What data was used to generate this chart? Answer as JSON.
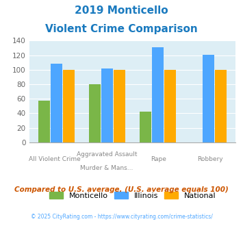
{
  "title_line1": "2019 Monticello",
  "title_line2": "Violent Crime Comparison",
  "title_color": "#1a7abf",
  "top_labels": [
    "",
    "Aggravated Assault",
    "",
    ""
  ],
  "bot_labels": [
    "All Violent Crime",
    "Murder & Mans...",
    "Rape",
    "Robbery"
  ],
  "monticello": [
    57,
    80,
    42,
    0
  ],
  "illinois": [
    108,
    102,
    131,
    121
  ],
  "national": [
    100,
    100,
    100,
    100
  ],
  "monticello_color": "#7ab648",
  "illinois_color": "#4da6ff",
  "national_color": "#ffaa00",
  "ylim": [
    0,
    140
  ],
  "yticks": [
    0,
    20,
    40,
    60,
    80,
    100,
    120,
    140
  ],
  "plot_bg": "#ddeef5",
  "footer_text": "Compared to U.S. average. (U.S. average equals 100)",
  "footer_color": "#cc5500",
  "copyright_text": "© 2025 CityRating.com - https://www.cityrating.com/crime-statistics/",
  "copyright_color": "#4da6ff",
  "legend_labels": [
    "Monticello",
    "Illinois",
    "National"
  ]
}
